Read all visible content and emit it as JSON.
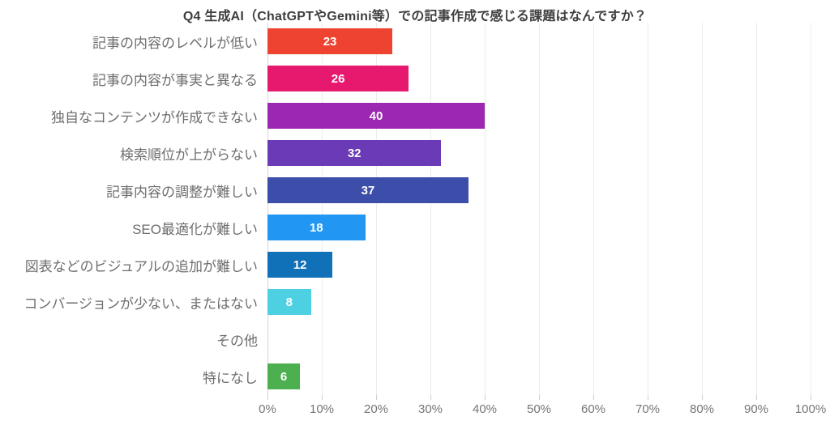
{
  "chart_data": {
    "type": "bar",
    "orientation": "horizontal",
    "title": "Q4 生成AI（ChatGPTやGemini等）での記事作成で感じる課題はなんですか？",
    "categories": [
      "記事の内容のレベルが低い",
      "記事の内容が事実と異なる",
      "独自なコンテンツが作成できない",
      "検索順位が上がらない",
      "記事内容の調整が難しい",
      "SEO最適化が難しい",
      "図表などのビジュアルの追加が難しい",
      "コンバージョンが少ない、またはない",
      "その他",
      "特になし"
    ],
    "values": [
      23,
      26,
      40,
      32,
      37,
      18,
      12,
      8,
      0,
      6
    ],
    "value_labels": [
      "23",
      "26",
      "40",
      "32",
      "37",
      "18",
      "12",
      "8",
      "",
      "6"
    ],
    "bar_colors": [
      "#ef4331",
      "#e6196f",
      "#9c27b0",
      "#6a3ab7",
      "#3d4eaa",
      "#2196f3",
      "#1070b8",
      "#4dd0e1",
      "",
      "#4caf50"
    ],
    "xlabel": "",
    "ylabel": "",
    "xlim": [
      0,
      100
    ],
    "x_tick_labels": [
      "0%",
      "10%",
      "20%",
      "30%",
      "40%",
      "50%",
      "60%",
      "70%",
      "80%",
      "90%",
      "100%"
    ],
    "grid": "vertical",
    "legend": "none",
    "value_label_color": "#ffffff",
    "axis_line_color": "#d6d6d6",
    "gridline_color": "#ececec"
  }
}
